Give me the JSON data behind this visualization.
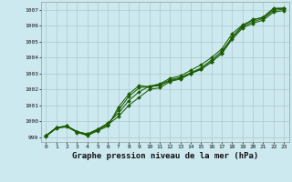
{
  "bg_color": "#cce9f0",
  "grid_color": "#b0c8cc",
  "line_color": "#1a5c00",
  "marker_color": "#1a5c00",
  "xlabel": "Graphe pression niveau de la mer (hPa)",
  "xlabel_fontsize": 6.5,
  "xlim": [
    -0.5,
    23.5
  ],
  "ylim": [
    998.7,
    1007.5
  ],
  "yticks": [
    999,
    1000,
    1001,
    1002,
    1003,
    1004,
    1005,
    1006,
    1007
  ],
  "xticks": [
    0,
    1,
    2,
    3,
    4,
    5,
    6,
    7,
    8,
    9,
    10,
    11,
    12,
    13,
    14,
    15,
    16,
    17,
    18,
    19,
    20,
    21,
    22,
    23
  ],
  "line1_x": [
    0,
    1,
    2,
    3,
    4,
    5,
    6,
    7,
    8,
    9,
    10,
    11,
    12,
    13,
    14,
    15,
    16,
    17,
    18,
    19,
    20,
    21,
    22,
    23
  ],
  "line1_y": [
    999.1,
    999.6,
    999.7,
    999.35,
    999.2,
    999.5,
    999.8,
    1000.3,
    1001.0,
    1001.5,
    1002.0,
    1002.1,
    1002.5,
    1002.65,
    1003.0,
    1003.3,
    1003.7,
    1004.3,
    1005.3,
    1006.0,
    1006.4,
    1006.5,
    1007.05,
    1007.1
  ],
  "line2_x": [
    0,
    1,
    2,
    3,
    4,
    5,
    6,
    7,
    8,
    9,
    10,
    11,
    12,
    13,
    14,
    15,
    16,
    17,
    18,
    19,
    20,
    21,
    22,
    23
  ],
  "line2_y": [
    999.1,
    999.6,
    999.7,
    999.35,
    999.2,
    999.5,
    999.9,
    1000.5,
    1001.3,
    1001.85,
    1002.2,
    1002.35,
    1002.7,
    1002.85,
    1003.2,
    1003.55,
    1004.0,
    1004.55,
    1005.5,
    1006.05,
    1006.35,
    1006.55,
    1007.1,
    1007.1
  ],
  "line3_x": [
    0,
    1,
    2,
    3,
    4,
    5,
    6,
    7,
    8,
    9,
    10,
    11,
    12,
    13,
    14,
    15,
    16,
    17,
    18,
    19,
    20,
    21,
    22,
    23
  ],
  "line3_y": [
    999.1,
    999.6,
    999.7,
    999.35,
    999.15,
    999.45,
    999.8,
    1000.7,
    1001.55,
    1002.1,
    1002.2,
    1002.3,
    1002.6,
    1002.75,
    1003.05,
    1003.35,
    1003.85,
    1004.4,
    1005.25,
    1005.95,
    1006.25,
    1006.45,
    1006.95,
    1007.05
  ],
  "line4_x": [
    0,
    1,
    2,
    3,
    4,
    5,
    6,
    7,
    8,
    9,
    10,
    11,
    12,
    13,
    14,
    15,
    16,
    17,
    18,
    19,
    20,
    21,
    22,
    23
  ],
  "line4_y": [
    999.05,
    999.55,
    999.65,
    999.3,
    999.1,
    999.4,
    999.7,
    1000.9,
    1001.7,
    1002.25,
    1002.15,
    1002.25,
    1002.55,
    1002.7,
    1003.0,
    1003.25,
    1003.75,
    1004.25,
    1005.15,
    1005.85,
    1006.15,
    1006.35,
    1006.85,
    1006.95
  ]
}
